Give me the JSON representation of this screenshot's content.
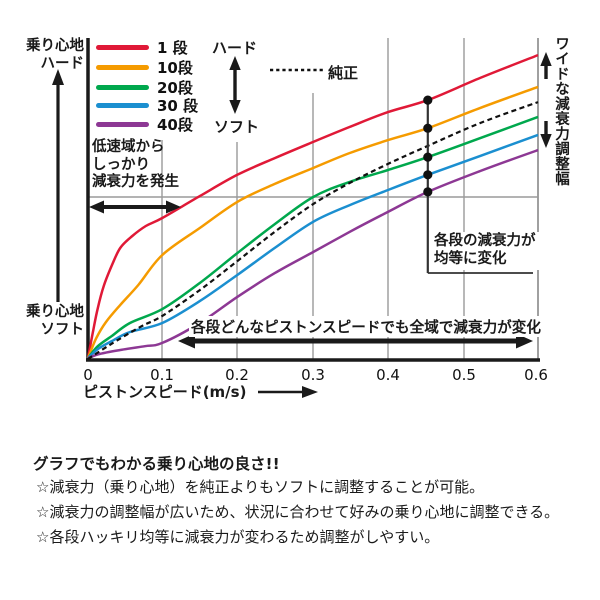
{
  "y_axis": {
    "top_label": [
      "乗り心地",
      "ハード"
    ],
    "bottom_label": [
      "乗り心地",
      "ソフト"
    ]
  },
  "x_axis": {
    "ticks": [
      "0",
      "0.1",
      "0.2",
      "0.3",
      "0.4",
      "0.5",
      "0.6"
    ],
    "title": "ピストンスピード(m/s)"
  },
  "legend": {
    "items": [
      {
        "label": "1 段"
      },
      {
        "label": "10段"
      },
      {
        "label": "20段"
      },
      {
        "label": "30 段"
      },
      {
        "label": "40段"
      }
    ],
    "hard": "ハード",
    "soft": "ソフト",
    "stock": "純正"
  },
  "annotations": {
    "low_speed": [
      "低速域から",
      "しっかり",
      "減衰力を発生"
    ],
    "equal_change": [
      "各段の減衰力が",
      "均等に変化"
    ],
    "all_range": "各段どんなピストンスピードでも全域で減衰力が変化",
    "wide_range": "ワイドな減衰力調整幅"
  },
  "footer": {
    "title": "グラフでもわかる乗り心地の良さ!!",
    "bullets": [
      "☆減衰力（乗り心地）を純正よりもソフトに調整することが可能。",
      "☆減衰力の調整幅が広いため、状況に合わせて好みの乗り心地に調整できる。",
      "☆各段ハッキリ均等に減衰力が変わるため調整がしやすい。"
    ]
  },
  "chart_data": {
    "type": "line",
    "xlabel": "ピストンスピード(m/s)",
    "ylabel": "減衰力 (乗り心地: ソフト 0 → ハード 100, 目盛り無しの定性軸)",
    "x_range": [
      0,
      0.6
    ],
    "y_range": [
      0,
      100
    ],
    "grid": "partial gray gridlines at x=0.1..0.5 and one horizontal line at force=50.6",
    "legend_position": "top-left inside plot",
    "series": [
      {
        "name": "1段",
        "color": "#e01937",
        "dashed": false,
        "points": [
          [
            0,
            0.6
          ],
          [
            0.007,
            9.3
          ],
          [
            0.013,
            16.1
          ],
          [
            0.021,
            23.0
          ],
          [
            0.032,
            29.5
          ],
          [
            0.043,
            34.8
          ],
          [
            0.059,
            38.5
          ],
          [
            0.077,
            41.6
          ],
          [
            0.099,
            44.1
          ],
          [
            0.149,
            50.9
          ],
          [
            0.199,
            57.5
          ],
          [
            0.249,
            62.7
          ],
          [
            0.3,
            67.7
          ],
          [
            0.349,
            72.4
          ],
          [
            0.4,
            77.0
          ],
          [
            0.453,
            80.7
          ],
          [
            0.523,
            87.6
          ],
          [
            0.6,
            94.7
          ]
        ]
      },
      {
        "name": "10段",
        "color": "#f59b00",
        "dashed": false,
        "points": [
          [
            0,
            0.6
          ],
          [
            0.011,
            6.8
          ],
          [
            0.024,
            11.8
          ],
          [
            0.043,
            17.1
          ],
          [
            0.067,
            23.3
          ],
          [
            0.099,
            32.6
          ],
          [
            0.149,
            41.0
          ],
          [
            0.199,
            49.1
          ],
          [
            0.249,
            54.7
          ],
          [
            0.3,
            59.6
          ],
          [
            0.349,
            64.3
          ],
          [
            0.4,
            68.3
          ],
          [
            0.453,
            72.0
          ],
          [
            0.523,
            78.3
          ],
          [
            0.6,
            84.8
          ]
        ]
      },
      {
        "name": "20段",
        "color": "#00a84d",
        "dashed": false,
        "points": [
          [
            0,
            0.6
          ],
          [
            0.013,
            4.3
          ],
          [
            0.032,
            7.5
          ],
          [
            0.056,
            11.5
          ],
          [
            0.099,
            15.8
          ],
          [
            0.149,
            23.9
          ],
          [
            0.199,
            33.2
          ],
          [
            0.249,
            42.2
          ],
          [
            0.3,
            50.6
          ],
          [
            0.349,
            55.3
          ],
          [
            0.4,
            59.0
          ],
          [
            0.453,
            63.0
          ],
          [
            0.523,
            68.9
          ],
          [
            0.6,
            75.5
          ]
        ]
      },
      {
        "name": "30段",
        "color": "#1b8fd0",
        "dashed": false,
        "points": [
          [
            0,
            0.6
          ],
          [
            0.013,
            3.4
          ],
          [
            0.032,
            5.9
          ],
          [
            0.056,
            8.7
          ],
          [
            0.099,
            11.5
          ],
          [
            0.149,
            18.3
          ],
          [
            0.199,
            26.4
          ],
          [
            0.249,
            34.8
          ],
          [
            0.3,
            42.9
          ],
          [
            0.349,
            48.1
          ],
          [
            0.4,
            52.8
          ],
          [
            0.453,
            57.5
          ],
          [
            0.523,
            63.4
          ],
          [
            0.6,
            69.9
          ]
        ]
      },
      {
        "name": "40段",
        "color": "#8d3894",
        "dashed": false,
        "points": [
          [
            0,
            0.6
          ],
          [
            0.016,
            1.9
          ],
          [
            0.043,
            3.1
          ],
          [
            0.076,
            4.3
          ],
          [
            0.099,
            5.3
          ],
          [
            0.149,
            11.5
          ],
          [
            0.199,
            19.6
          ],
          [
            0.249,
            27.0
          ],
          [
            0.3,
            33.5
          ],
          [
            0.349,
            39.8
          ],
          [
            0.4,
            46.0
          ],
          [
            0.453,
            52.2
          ],
          [
            0.523,
            58.7
          ],
          [
            0.6,
            65.2
          ]
        ]
      },
      {
        "name": "純正",
        "color": "#111111",
        "dashed": true,
        "points": [
          [
            0,
            0.3
          ],
          [
            0.029,
            4.7
          ],
          [
            0.069,
            10.2
          ],
          [
            0.099,
            13.7
          ],
          [
            0.149,
            21.7
          ],
          [
            0.199,
            30.7
          ],
          [
            0.249,
            39.8
          ],
          [
            0.3,
            48.4
          ],
          [
            0.349,
            55.0
          ],
          [
            0.4,
            60.9
          ],
          [
            0.453,
            66.5
          ],
          [
            0.523,
            73.6
          ],
          [
            0.6,
            80.1
          ]
        ]
      }
    ],
    "markers": {
      "description": "black dots on each adjustable-stage curve at same piston speed, joined by vertical callout line",
      "x": 0.453,
      "points": [
        [
          0.453,
          80.7
        ],
        [
          0.453,
          72.0
        ],
        [
          0.453,
          63.0
        ],
        [
          0.453,
          57.5
        ],
        [
          0.453,
          52.2
        ]
      ]
    }
  }
}
